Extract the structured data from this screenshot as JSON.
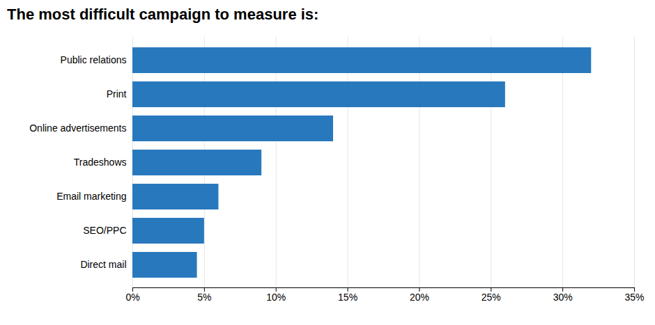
{
  "chart_data": {
    "type": "bar",
    "orientation": "horizontal",
    "title": "The most difficult campaign to measure is:",
    "categories": [
      "Direct mail",
      "SEO/PPC",
      "Email marketing",
      "Tradeshows",
      "Online advertisements",
      "Print",
      "Public relations"
    ],
    "values": [
      4.5,
      5,
      6,
      9,
      14,
      26,
      32
    ],
    "color": "#2878be",
    "xlim": [
      0,
      35
    ],
    "xticks": [
      {
        "value": 0,
        "label": "0%"
      },
      {
        "value": 5,
        "label": "5%"
      },
      {
        "value": 10,
        "label": "10%"
      },
      {
        "value": 15,
        "label": "15%"
      },
      {
        "value": 20,
        "label": "20%"
      },
      {
        "value": 25,
        "label": "25%"
      },
      {
        "value": 30,
        "label": "30%"
      },
      {
        "value": 35,
        "label": "35%"
      }
    ],
    "grid": true
  }
}
